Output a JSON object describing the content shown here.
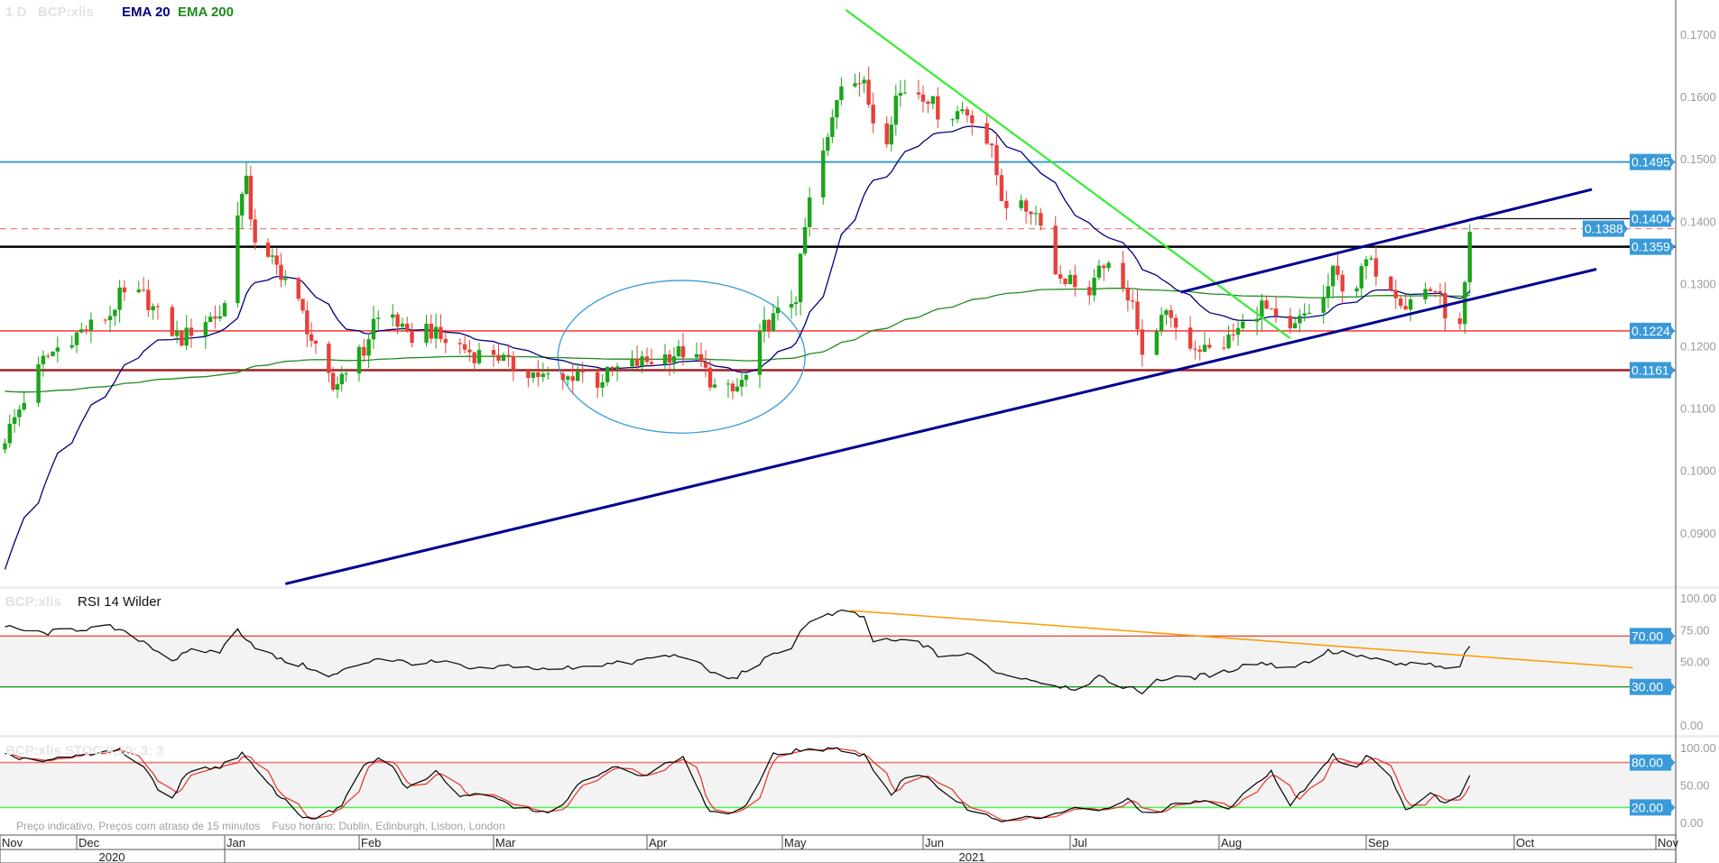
{
  "header": {
    "interval": "1 D",
    "symbol": "BCP:xlis",
    "ema20_label": "EMA 20",
    "ema200_label": "EMA 200"
  },
  "rsi_header": {
    "symbol": "BCP:xlis",
    "title": "RSI 14 Wilder"
  },
  "stoch_header": {
    "label": "BCP:xlis STOC 9,10; 3; 3"
  },
  "footnote": "Preço indicativo. Preços com atraso de 15 minutos    Fuso horário: Dublin, Edinburgh, Lisbon, London",
  "colors": {
    "up": "#1aa51a",
    "down": "#e8403a",
    "ema20": "#000080",
    "ema200": "#1e8c1e",
    "label_bg": "#3a9ad9",
    "axis_text": "#9a9a9a"
  },
  "x_axis": {
    "months": [
      "Nov",
      "Dec",
      "Jan",
      "Feb",
      "Mar",
      "Apr",
      "May",
      "Jun",
      "Jul",
      "Aug",
      "Sep",
      "Oct",
      "Nov"
    ],
    "years": [
      "2020",
      "2021"
    ]
  },
  "chart_data": [
    {
      "type": "candlestick",
      "name": "BCP:xlis price",
      "start": "2020-11-16",
      "end": "2021-09-22",
      "ylim": [
        0.082,
        0.175
      ],
      "y_ticks": [
        "0.1700",
        "0.1600",
        "0.1500",
        "0.1400",
        "0.1300",
        "0.1200",
        "0.1100",
        "0.1000",
        "0.0900"
      ],
      "y_tick_values": [
        0.17,
        0.16,
        0.15,
        0.14,
        0.13,
        0.12,
        0.11,
        0.1,
        0.09
      ],
      "ema20_seed": 0.082,
      "ema200_seed": 0.1128,
      "close_anchors": [
        [
          "2020-11-15",
          0.1037
        ],
        [
          "2020-11-24",
          0.1177
        ],
        [
          "2020-11-29",
          0.121
        ],
        [
          "2020-12-08",
          0.125
        ],
        [
          "2020-12-10",
          0.128
        ],
        [
          "2020-12-15",
          0.128
        ],
        [
          "2020-12-20",
          0.123
        ],
        [
          "2020-12-23",
          0.121
        ],
        [
          "2020-12-27",
          0.124
        ],
        [
          "2020-12-31",
          0.125
        ],
        [
          "2021-01-03",
          0.13
        ],
        [
          "2021-01-04",
          0.142
        ],
        [
          "2021-01-06",
          0.146
        ],
        [
          "2021-01-07",
          0.141
        ],
        [
          "2021-01-09",
          0.1335
        ],
        [
          "2021-01-12",
          0.1335
        ],
        [
          "2021-01-16",
          0.13
        ],
        [
          "2021-01-19",
          0.125
        ],
        [
          "2021-01-22",
          0.119
        ],
        [
          "2021-01-24",
          0.116
        ],
        [
          "2021-01-26",
          0.113
        ],
        [
          "2021-01-30",
          0.118
        ],
        [
          "2021-02-02",
          0.119
        ],
        [
          "2021-02-04",
          0.124
        ],
        [
          "2021-02-08",
          0.125
        ],
        [
          "2021-02-11",
          0.121
        ],
        [
          "2021-02-15",
          0.123
        ],
        [
          "2021-02-18",
          0.121
        ],
        [
          "2021-02-22",
          0.12
        ],
        [
          "2021-02-25",
          0.1186
        ],
        [
          "2021-03-01",
          0.119
        ],
        [
          "2021-03-04",
          0.117
        ],
        [
          "2021-03-08",
          0.116
        ],
        [
          "2021-03-11",
          0.115
        ],
        [
          "2021-03-15",
          0.1142
        ],
        [
          "2021-03-18",
          0.116
        ],
        [
          "2021-03-22",
          0.1142
        ],
        [
          "2021-03-25",
          0.116
        ],
        [
          "2021-03-29",
          0.117
        ],
        [
          "2021-04-02",
          0.1177
        ],
        [
          "2021-04-06",
          0.1186
        ],
        [
          "2021-04-09",
          0.119
        ],
        [
          "2021-04-13",
          0.117
        ],
        [
          "2021-04-16",
          0.1133
        ],
        [
          "2021-04-20",
          0.1125
        ],
        [
          "2021-04-23",
          0.115
        ],
        [
          "2021-04-27",
          0.123
        ],
        [
          "2021-04-30",
          0.125
        ],
        [
          "2021-05-04",
          0.128
        ],
        [
          "2021-05-06",
          0.1388
        ],
        [
          "2021-05-08",
          0.1475
        ],
        [
          "2021-05-11",
          0.1528
        ],
        [
          "2021-05-13",
          0.16
        ],
        [
          "2021-05-15",
          0.165
        ],
        [
          "2021-05-17",
          0.1633
        ],
        [
          "2021-05-19",
          0.1616
        ],
        [
          "2021-05-21",
          0.1563
        ],
        [
          "2021-05-24",
          0.1537
        ],
        [
          "2021-05-26",
          0.16
        ],
        [
          "2021-05-29",
          0.1616
        ],
        [
          "2021-06-02",
          0.16
        ],
        [
          "2021-06-05",
          0.1563
        ],
        [
          "2021-06-09",
          0.158
        ],
        [
          "2021-06-12",
          0.1563
        ],
        [
          "2021-06-15",
          0.151
        ],
        [
          "2021-06-17",
          0.144
        ],
        [
          "2021-06-19",
          0.142
        ],
        [
          "2021-06-23",
          0.142
        ],
        [
          "2021-06-25",
          0.1405
        ],
        [
          "2021-06-27",
          0.1317
        ],
        [
          "2021-06-30",
          0.1309
        ],
        [
          "2021-07-03",
          0.13
        ],
        [
          "2021-07-05",
          0.128
        ],
        [
          "2021-07-08",
          0.1335
        ],
        [
          "2021-07-11",
          0.129
        ],
        [
          "2021-07-14",
          0.128
        ],
        [
          "2021-07-16",
          0.1177
        ],
        [
          "2021-07-18",
          0.123
        ],
        [
          "2021-07-22",
          0.125
        ],
        [
          "2021-07-24",
          0.121
        ],
        [
          "2021-07-27",
          0.12
        ],
        [
          "2021-07-31",
          0.119
        ],
        [
          "2021-08-03",
          0.121
        ],
        [
          "2021-08-07",
          0.124
        ],
        [
          "2021-08-10",
          0.1265
        ],
        [
          "2021-08-14",
          0.123
        ],
        [
          "2021-08-16",
          0.122
        ],
        [
          "2021-08-19",
          0.125
        ],
        [
          "2021-08-23",
          0.1274
        ],
        [
          "2021-08-25",
          0.1317
        ],
        [
          "2021-08-29",
          0.128
        ],
        [
          "2021-09-01",
          0.1335
        ],
        [
          "2021-09-04",
          0.1317
        ],
        [
          "2021-09-06",
          0.13
        ],
        [
          "2021-09-09",
          0.1265
        ],
        [
          "2021-09-12",
          0.129
        ],
        [
          "2021-09-15",
          0.129
        ],
        [
          "2021-09-17",
          0.1255
        ],
        [
          "2021-09-20",
          0.1235
        ],
        [
          "2021-09-21",
          0.1302
        ],
        [
          "2021-09-22",
          0.1383
        ]
      ],
      "horizontal_levels": [
        {
          "value": 0.1495,
          "label": "0.1495",
          "color": "#3a9ad9",
          "style": "solid-medium"
        },
        {
          "value": 0.1388,
          "label": "0.1388",
          "color": "#f08080",
          "style": "dashed"
        },
        {
          "value": 0.1404,
          "label": "0.1404",
          "color": "#111111",
          "style": "thin-partial",
          "from": "2021-09-22"
        },
        {
          "value": 0.1359,
          "label": "0.1359",
          "color": "#000000",
          "style": "solid-thick"
        },
        {
          "value": 0.1224,
          "label": "0.1224",
          "color": "#ff2020",
          "style": "solid-thin"
        },
        {
          "value": 0.1161,
          "label": "0.1161",
          "color": "#a02020",
          "style": "solid-thick"
        }
      ],
      "trendlines": [
        {
          "name": "downtrend",
          "color": "#33ee33",
          "from": [
            "2021-05-15",
            0.1739
          ],
          "to": [
            "2021-08-16",
            0.1212
          ]
        },
        {
          "name": "long-support",
          "color": "#000090",
          "from": [
            "2021-01-15",
            0.0818
          ],
          "to": [
            "2021-10-19",
            0.1323
          ]
        },
        {
          "name": "channel-upper",
          "color": "#000090",
          "from": [
            "2021-07-24",
            0.1286
          ],
          "to": [
            "2021-10-18",
            0.1451
          ]
        }
      ],
      "ellipse": {
        "color": "#3a9ad9",
        "from": "2021-03-14",
        "to": "2021-05-06",
        "price_top": 0.1305,
        "price_bottom": 0.106
      }
    },
    {
      "type": "line",
      "name": "RSI 14 Wilder",
      "ylim": [
        0,
        100
      ],
      "y_ticks": [
        "100.00",
        "75.00",
        "50.00",
        "0.00"
      ],
      "y_tick_values": [
        100,
        75,
        50,
        0
      ],
      "bands": [
        {
          "value": 70,
          "label": "70.00",
          "color": "#e8503a"
        },
        {
          "value": 30,
          "label": "30.00",
          "color": "#1a9a1a"
        }
      ],
      "trendline": {
        "color": "#ff9900",
        "from": [
          "2021-05-16",
          90
        ],
        "to": [
          "2021-10-27",
          45
        ]
      },
      "anchors": [
        [
          "2020-11-15",
          77.6
        ],
        [
          "2020-11-24",
          72
        ],
        [
          "2020-11-29",
          75
        ],
        [
          "2020-12-08",
          77
        ],
        [
          "2020-12-15",
          66
        ],
        [
          "2020-12-21",
          51
        ],
        [
          "2020-12-25",
          58
        ],
        [
          "2020-12-31",
          58
        ],
        [
          "2021-01-04",
          75
        ],
        [
          "2021-01-08",
          62
        ],
        [
          "2021-01-14",
          51
        ],
        [
          "2021-01-21",
          45
        ],
        [
          "2021-01-24",
          36
        ],
        [
          "2021-01-30",
          45
        ],
        [
          "2021-02-05",
          53
        ],
        [
          "2021-02-11",
          49
        ],
        [
          "2021-02-19",
          49
        ],
        [
          "2021-02-25",
          43
        ],
        [
          "2021-03-05",
          47
        ],
        [
          "2021-03-12",
          43
        ],
        [
          "2021-03-20",
          47
        ],
        [
          "2021-03-29",
          49
        ],
        [
          "2021-04-02",
          53
        ],
        [
          "2021-04-09",
          55
        ],
        [
          "2021-04-16",
          40
        ],
        [
          "2021-04-20",
          36
        ],
        [
          "2021-04-23",
          43
        ],
        [
          "2021-04-28",
          53
        ],
        [
          "2021-05-03",
          62
        ],
        [
          "2021-05-06",
          79
        ],
        [
          "2021-05-11",
          86
        ],
        [
          "2021-05-16",
          90
        ],
        [
          "2021-05-19",
          84
        ],
        [
          "2021-05-21",
          66
        ],
        [
          "2021-05-31",
          66
        ],
        [
          "2021-06-04",
          55
        ],
        [
          "2021-06-11",
          55
        ],
        [
          "2021-06-13",
          49
        ],
        [
          "2021-06-17",
          40
        ],
        [
          "2021-06-22",
          37
        ],
        [
          "2021-06-27",
          32
        ],
        [
          "2021-07-02",
          29
        ],
        [
          "2021-07-07",
          37
        ],
        [
          "2021-07-11",
          32
        ],
        [
          "2021-07-16",
          26
        ],
        [
          "2021-07-19",
          36
        ],
        [
          "2021-07-25",
          37
        ],
        [
          "2021-08-01",
          40
        ],
        [
          "2021-08-06",
          47
        ],
        [
          "2021-08-10",
          49
        ],
        [
          "2021-08-15",
          45
        ],
        [
          "2021-08-19",
          49
        ],
        [
          "2021-08-24",
          58
        ],
        [
          "2021-08-30",
          55
        ],
        [
          "2021-09-07",
          47
        ],
        [
          "2021-09-12",
          49
        ],
        [
          "2021-09-16",
          45
        ],
        [
          "2021-09-19",
          40
        ],
        [
          "2021-09-22",
          62
        ]
      ]
    },
    {
      "type": "line",
      "name": "Stochastic %K / %D",
      "ylim": [
        0,
        100
      ],
      "y_ticks": [
        "100.00",
        "50.00",
        "0.00"
      ],
      "y_tick_values": [
        100,
        50,
        0
      ],
      "bands": [
        {
          "value": 80,
          "label": "80.00",
          "color": "#e87a7a"
        },
        {
          "value": 20,
          "label": "20.00",
          "color": "#55ee55"
        }
      ],
      "series": [
        {
          "name": "%K",
          "color": "#000000"
        },
        {
          "name": "%D",
          "color": "#e8302a"
        }
      ],
      "k_anchors": [
        [
          "2020-11-15",
          90
        ],
        [
          "2020-11-24",
          82
        ],
        [
          "2020-12-03",
          90
        ],
        [
          "2020-12-10",
          97
        ],
        [
          "2020-12-15",
          75
        ],
        [
          "2020-12-20",
          22
        ],
        [
          "2020-12-24",
          67
        ],
        [
          "2020-12-31",
          75
        ],
        [
          "2021-01-05",
          92
        ],
        [
          "2021-01-12",
          45
        ],
        [
          "2021-01-19",
          7
        ],
        [
          "2021-01-23",
          7
        ],
        [
          "2021-01-28",
          22
        ],
        [
          "2021-02-02",
          75
        ],
        [
          "2021-02-06",
          90
        ],
        [
          "2021-02-11",
          45
        ],
        [
          "2021-02-17",
          67
        ],
        [
          "2021-02-22",
          37
        ],
        [
          "2021-03-01",
          37
        ],
        [
          "2021-03-05",
          22
        ],
        [
          "2021-03-14",
          12
        ],
        [
          "2021-03-18",
          52
        ],
        [
          "2021-03-25",
          75
        ],
        [
          "2021-03-31",
          60
        ],
        [
          "2021-04-09",
          90
        ],
        [
          "2021-04-14",
          22
        ],
        [
          "2021-04-17",
          7
        ],
        [
          "2021-04-23",
          22
        ],
        [
          "2021-04-29",
          90
        ],
        [
          "2021-05-05",
          97
        ],
        [
          "2021-05-14",
          97
        ],
        [
          "2021-05-19",
          90
        ],
        [
          "2021-05-25",
          37
        ],
        [
          "2021-05-29",
          67
        ],
        [
          "2021-06-02",
          57
        ],
        [
          "2021-06-11",
          15
        ],
        [
          "2021-06-17",
          3
        ],
        [
          "2021-06-25",
          7
        ],
        [
          "2021-07-02",
          18
        ],
        [
          "2021-07-07",
          15
        ],
        [
          "2021-07-13",
          30
        ],
        [
          "2021-07-18",
          7
        ],
        [
          "2021-07-22",
          22
        ],
        [
          "2021-07-29",
          30
        ],
        [
          "2021-08-03",
          15
        ],
        [
          "2021-08-08",
          52
        ],
        [
          "2021-08-12",
          67
        ],
        [
          "2021-08-16",
          22
        ],
        [
          "2021-08-19",
          45
        ],
        [
          "2021-08-25",
          90
        ],
        [
          "2021-08-29",
          67
        ],
        [
          "2021-09-01",
          90
        ],
        [
          "2021-09-05",
          75
        ],
        [
          "2021-09-09",
          18
        ],
        [
          "2021-09-14",
          37
        ],
        [
          "2021-09-19",
          22
        ],
        [
          "2021-09-22",
          63
        ]
      ]
    }
  ]
}
